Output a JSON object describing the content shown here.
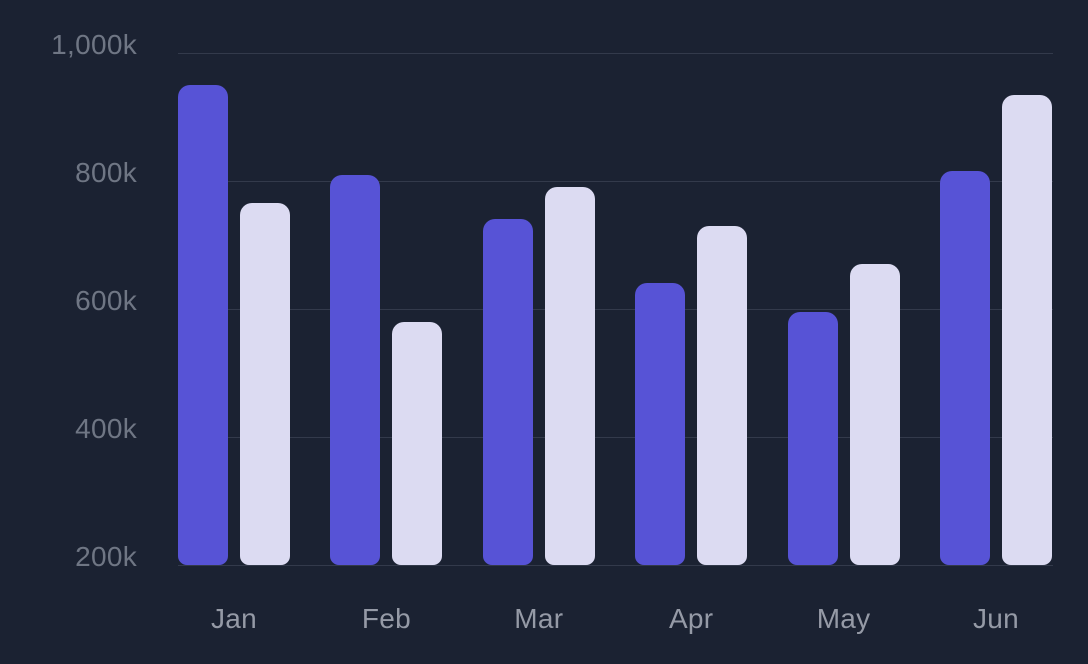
{
  "chart_data": {
    "type": "bar",
    "title": "",
    "xlabel": "",
    "ylabel": "",
    "categories": [
      "Jan",
      "Feb",
      "Mar",
      "Apr",
      "May",
      "Jun"
    ],
    "series": [
      {
        "name": "indigo",
        "color": "#5753d6",
        "values": [
          950,
          810,
          740,
          640,
          595,
          815
        ]
      },
      {
        "name": "lavender",
        "color": "#dcdbf2",
        "values": [
          765,
          580,
          790,
          730,
          670,
          935
        ]
      }
    ],
    "value_unit": "k",
    "ylim": [
      200,
      1000
    ],
    "y_ticks": [
      {
        "label": "1,000k",
        "value": 1000
      },
      {
        "label": "800k",
        "value": 800
      },
      {
        "label": "600k",
        "value": 600
      },
      {
        "label": "400k",
        "value": 400
      },
      {
        "label": "200k",
        "value": 200
      }
    ],
    "grid": "horizontal",
    "legend": "none"
  },
  "colors": {
    "background": "#1b2232",
    "gridline": "#333a4b",
    "y_tick_label": "#6f7684",
    "x_tick_label": "#959aa6",
    "bar_series_1": "#5753d6",
    "bar_series_2": "#dcdbf2"
  }
}
